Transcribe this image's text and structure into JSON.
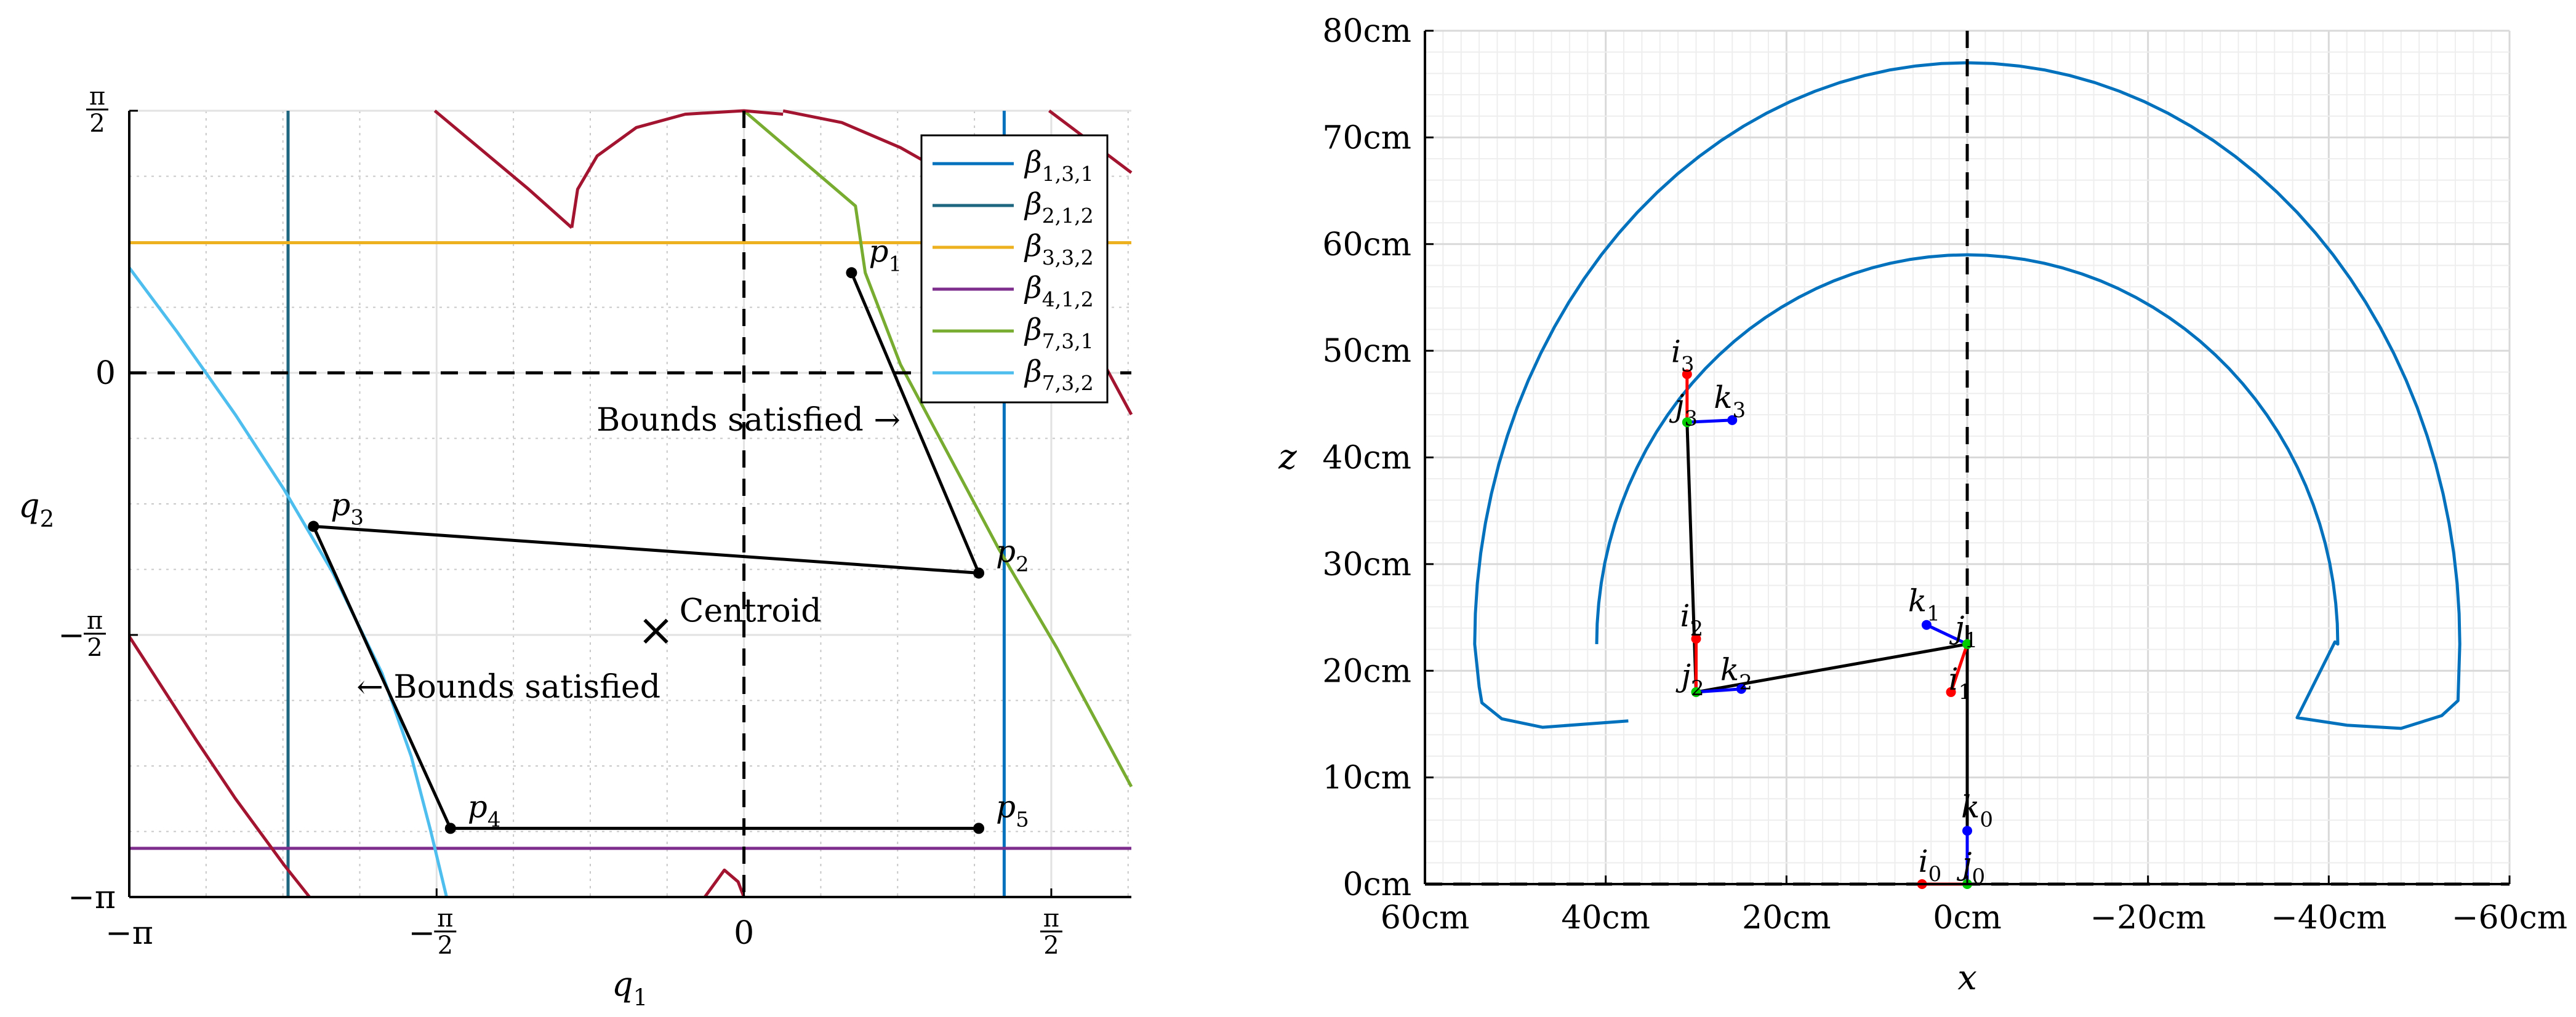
{
  "chart_data": [
    {
      "type": "line",
      "xlabel_sym": "q",
      "xlabel_sub": "1",
      "ylabel_sym": "q",
      "ylabel_sub": "2",
      "xlim": [
        -3.14159,
        1.98
      ],
      "ylim": [
        -3.14159,
        1.5708
      ],
      "grid": true,
      "xticks": [
        {
          "v": -3.14159,
          "label": "−π"
        },
        {
          "v": -1.5708,
          "label": "−π/2"
        },
        {
          "v": 0,
          "label": "0"
        },
        {
          "v": 1.5708,
          "label": "π/2"
        }
      ],
      "yticks": [
        {
          "v": -3.14159,
          "label": "−π"
        },
        {
          "v": -1.5708,
          "label": "−π/2"
        },
        {
          "v": 0,
          "label": "0"
        },
        {
          "v": 1.5708,
          "label": "π/2"
        }
      ],
      "legend_position": "top-right",
      "series": [
        {
          "sym": "β",
          "sub": "1,3,1",
          "color": "#0072BD",
          "segments": [
            [
              [
                1.33,
                1.5708
              ],
              [
                1.33,
                -3.14159
              ]
            ]
          ]
        },
        {
          "sym": "β",
          "sub": "2,1,2",
          "color": "#1F6680",
          "segments": [
            [
              [
                -2.33,
                1.5708
              ],
              [
                -2.33,
                -3.14159
              ]
            ]
          ]
        },
        {
          "sym": "β",
          "sub": "3,3,2",
          "color": "#EDB120",
          "segments": [
            [
              [
                -3.14159,
                0.78
              ],
              [
                1.98,
                0.78
              ]
            ]
          ]
        },
        {
          "sym": "β",
          "sub": "4,1,2",
          "color": "#7E2F8E",
          "segments": [
            [
              [
                -3.14159,
                -2.85
              ],
              [
                1.98,
                -2.85
              ]
            ]
          ]
        },
        {
          "sym": "β",
          "sub": "7,3,1",
          "color": "#77AC30",
          "segments": [
            [
              [
                0,
                1.5708
              ],
              [
                0.57,
                1.0
              ],
              [
                0.62,
                0.6
              ],
              [
                0.8,
                0.05
              ],
              [
                1.05,
                -0.5
              ],
              [
                1.3,
                -1.05
              ],
              [
                1.6,
                -1.65
              ],
              [
                1.98,
                -2.48
              ]
            ]
          ]
        },
        {
          "sym": "β",
          "sub": "7,3,2",
          "color": "#4DBEEE",
          "segments": [
            [
              [
                -3.14159,
                0.63
              ],
              [
                -2.9,
                0.25
              ],
              [
                -2.6,
                -0.25
              ],
              [
                -2.35,
                -0.7
              ],
              [
                -2.1,
                -1.2
              ],
              [
                -1.85,
                -1.8
              ],
              [
                -1.7,
                -2.3
              ],
              [
                -1.6,
                -2.75
              ],
              [
                -1.52,
                -3.14159
              ]
            ]
          ]
        },
        {
          "sym": "",
          "sub": "",
          "color": "#A2142F",
          "segments": [
            [
              [
                -1.58,
                1.5708
              ],
              [
                -1.1,
                1.1
              ],
              [
                -0.88,
                0.87
              ]
            ],
            [
              [
                -0.88,
                0.87
              ],
              [
                -0.85,
                1.1
              ],
              [
                -0.75,
                1.3
              ],
              [
                -0.55,
                1.47
              ],
              [
                -0.3,
                1.55
              ],
              [
                0,
                1.5708
              ],
              [
                0.2,
                1.55
              ]
            ],
            [
              [
                0.2,
                1.57
              ],
              [
                0.5,
                1.5
              ],
              [
                0.8,
                1.35
              ],
              [
                1.1,
                1.15
              ]
            ],
            [
              [
                1.56,
                1.5708
              ],
              [
                1.98,
                1.2
              ]
            ],
            [
              [
                1.75,
                0.25
              ],
              [
                1.98,
                -0.25
              ]
            ],
            [
              [
                -3.14159,
                -1.58
              ],
              [
                -2.8,
                -2.2
              ],
              [
                -2.6,
                -2.55
              ],
              [
                -2.35,
                -2.95
              ],
              [
                -2.22,
                -3.14159
              ]
            ],
            [
              [
                -0.2,
                -3.14159
              ],
              [
                -0.1,
                -2.98
              ],
              [
                -0.03,
                -3.05
              ],
              [
                0,
                -3.14159
              ]
            ]
          ]
        }
      ],
      "polygon": [
        [
          0.55,
          0.6
        ],
        [
          1.2,
          -1.2
        ],
        [
          -2.2,
          -0.92
        ],
        [
          -1.5,
          -2.73
        ],
        [
          1.2,
          -2.73
        ]
      ],
      "points": [
        {
          "sym": "p",
          "sub": "1",
          "x": 0.55,
          "y": 0.6
        },
        {
          "sym": "p",
          "sub": "2",
          "x": 1.2,
          "y": -1.2
        },
        {
          "sym": "p",
          "sub": "3",
          "x": -2.2,
          "y": -0.92
        },
        {
          "sym": "p",
          "sub": "4",
          "x": -1.5,
          "y": -2.73
        },
        {
          "sym": "p",
          "sub": "5",
          "x": 1.2,
          "y": -2.73
        }
      ],
      "centroid": {
        "x": -0.45,
        "y": -1.55,
        "label": "Centroid",
        "marker": "×"
      },
      "annotations": [
        {
          "text": "Bounds satisfied →",
          "x": 0.8,
          "y": -0.28,
          "anchor": "end"
        },
        {
          "text": "← Bounds satisfied",
          "x": -1.98,
          "y": -1.88,
          "anchor": "start"
        }
      ]
    },
    {
      "type": "line",
      "xlabel": "x",
      "ylabel": "z",
      "xlim": [
        60,
        -60
      ],
      "ylim": [
        0,
        80
      ],
      "grid": true,
      "xticks": [
        {
          "v": 60,
          "label": "60cm"
        },
        {
          "v": 40,
          "label": "40cm"
        },
        {
          "v": 20,
          "label": "20cm"
        },
        {
          "v": 0,
          "label": "0cm"
        },
        {
          "v": -20,
          "label": "−20cm"
        },
        {
          "v": -40,
          "label": "−40cm"
        },
        {
          "v": -60,
          "label": "−60cm"
        }
      ],
      "yticks": [
        {
          "v": 0,
          "label": "0cm"
        },
        {
          "v": 10,
          "label": "10cm"
        },
        {
          "v": 20,
          "label": "20cm"
        },
        {
          "v": 30,
          "label": "30cm"
        },
        {
          "v": 40,
          "label": "40cm"
        },
        {
          "v": 50,
          "label": "50cm"
        },
        {
          "v": 60,
          "label": "60cm"
        },
        {
          "v": 70,
          "label": "70cm"
        },
        {
          "v": 80,
          "label": "80cm"
        }
      ],
      "boundary": {
        "color": "#0072BD",
        "outer_radius": 55,
        "inner_radius": 41,
        "center_z": 22.5,
        "left_end_x": 37.5,
        "right_end_x": -36.5
      },
      "links": [
        [
          [
            0,
            0
          ],
          [
            0,
            22.5
          ]
        ],
        [
          [
            0,
            22.5
          ],
          [
            30,
            18
          ]
        ],
        [
          [
            30,
            18
          ],
          [
            31,
            43.3
          ]
        ]
      ],
      "frames": [
        {
          "label": "0",
          "origin": [
            0,
            0
          ],
          "i": [
            5,
            0
          ],
          "k": [
            0,
            5
          ]
        },
        {
          "label": "1",
          "origin": [
            0,
            22.5
          ],
          "i": [
            1.8,
            18
          ],
          "k": [
            4.5,
            24.3
          ]
        },
        {
          "label": "2",
          "origin": [
            30,
            18
          ],
          "i": [
            30,
            23
          ],
          "k": [
            25,
            18.3
          ]
        },
        {
          "label": "3",
          "origin": [
            31,
            43.3
          ],
          "i": [
            31,
            47.8
          ],
          "k": [
            26,
            43.5
          ]
        }
      ]
    }
  ]
}
